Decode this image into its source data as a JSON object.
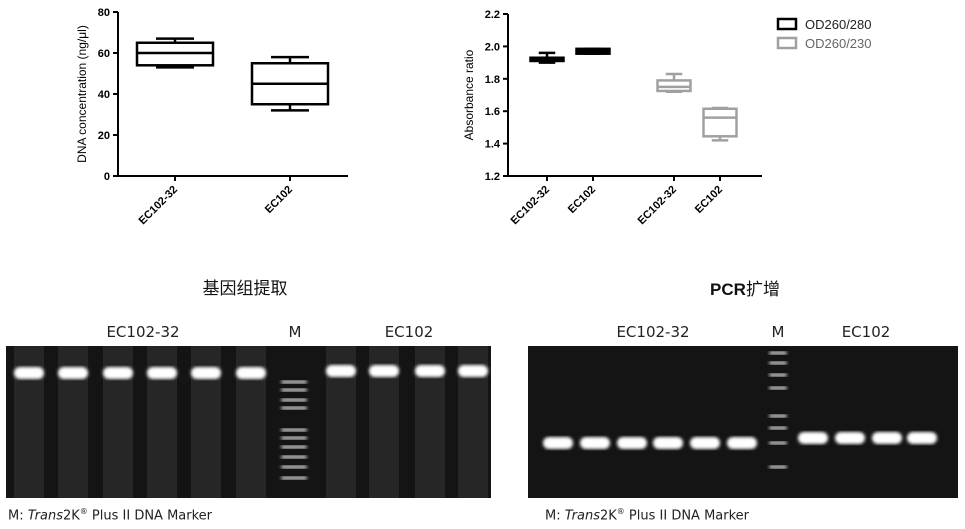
{
  "chart_data": [
    {
      "type": "box",
      "ylabel": "DNA  concentration (ng/μl)",
      "ylim": [
        0,
        80
      ],
      "yticks": [
        0,
        20,
        40,
        60,
        80
      ],
      "categories": [
        "EC102-32",
        "EC102"
      ],
      "boxes": [
        {
          "category": "EC102-32",
          "min": 53,
          "q1": 54,
          "median": 60,
          "q3": 65,
          "max": 67
        },
        {
          "category": "EC102",
          "min": 32,
          "q1": 35,
          "median": 45,
          "q3": 55,
          "max": 58
        }
      ],
      "color": "#000000"
    },
    {
      "type": "box",
      "ylabel": "Absorbance ratio",
      "ylim": [
        1.2,
        2.2
      ],
      "yticks": [
        "1.2",
        "1.4",
        "1.6",
        "1.8",
        "2.0",
        "2.2"
      ],
      "categories": [
        "EC102-32",
        "EC102",
        "EC102-32",
        "EC102"
      ],
      "legend_position": "top-right",
      "series": [
        {
          "name": "OD260/280",
          "color": "#000000",
          "boxes": [
            {
              "category": "EC102-32",
              "min": 1.9,
              "q1": 1.91,
              "median": 1.92,
              "q3": 1.93,
              "max": 1.96
            },
            {
              "category": "EC102",
              "min": 1.955,
              "q1": 1.955,
              "median": 1.97,
              "q3": 1.985,
              "max": 1.985
            }
          ]
        },
        {
          "name": "OD260/230",
          "color": "#a0a0a0",
          "boxes": [
            {
              "category": "EC102-32",
              "min": 1.72,
              "q1": 1.725,
              "median": 1.75,
              "q3": 1.79,
              "max": 1.83
            },
            {
              "category": "EC102",
              "min": 1.42,
              "q1": 1.445,
              "median": 1.56,
              "q3": 1.615,
              "max": 1.62
            }
          ]
        }
      ]
    }
  ],
  "panels": {
    "extraction": {
      "heading": "基因组提取",
      "group1": "EC102-32",
      "marker": "M",
      "group2": "EC102",
      "caption_prefix": "M: ",
      "caption_italic": "Trans",
      "caption_main": "2K",
      "caption_reg": "®",
      "caption_suffix": " Plus II DNA Marker"
    },
    "pcr": {
      "heading_bold": "PCR",
      "heading_rest": "扩增",
      "group1": "EC102-32",
      "marker": "M",
      "group2": "EC102",
      "caption_prefix": "M: ",
      "caption_italic": "Trans",
      "caption_main": "2K",
      "caption_reg": "®",
      "caption_suffix": " Plus II DNA Marker"
    }
  }
}
